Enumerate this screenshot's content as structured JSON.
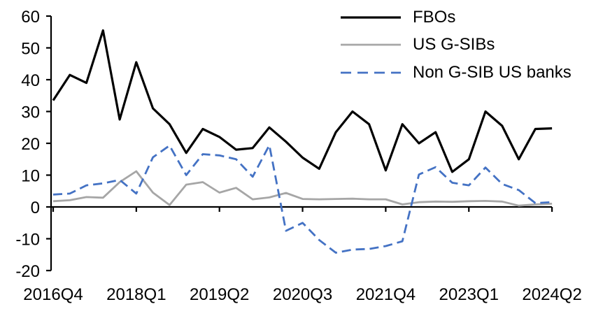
{
  "chart_data": {
    "type": "line",
    "title": "",
    "xlabel": "",
    "ylabel": "",
    "ylim": [
      -20,
      60
    ],
    "grid": false,
    "legend_position": "top-right",
    "categories": [
      "2016Q4",
      "2017Q1",
      "2017Q2",
      "2017Q3",
      "2017Q4",
      "2018Q1",
      "2018Q2",
      "2018Q3",
      "2018Q4",
      "2019Q1",
      "2019Q2",
      "2019Q3",
      "2019Q4",
      "2020Q1",
      "2020Q2",
      "2020Q3",
      "2020Q4",
      "2021Q1",
      "2021Q2",
      "2021Q3",
      "2021Q4",
      "2022Q1",
      "2022Q2",
      "2022Q3",
      "2022Q4",
      "2023Q1",
      "2023Q2",
      "2023Q3",
      "2023Q4",
      "2024Q1",
      "2024Q2"
    ],
    "x_tick_labels": [
      "2016Q4",
      "2018Q1",
      "2019Q2",
      "2020Q3",
      "2021Q4",
      "2023Q1",
      "2024Q2"
    ],
    "y_ticks": [
      60,
      50,
      40,
      30,
      20,
      10,
      0,
      -10,
      -20
    ],
    "series": [
      {
        "name": "FBOs",
        "color": "#000000",
        "dashed": false,
        "values": [
          33.5,
          41.5,
          39,
          55.5,
          27.5,
          45.5,
          31,
          26,
          17,
          24.5,
          22,
          18,
          18.5,
          25,
          20.5,
          15.5,
          12,
          23.5,
          30,
          26,
          11.5,
          26,
          20,
          23.5,
          11,
          15,
          30,
          25.5,
          15,
          24.5,
          24.7
        ]
      },
      {
        "name": "US G-SIBs",
        "color": "#A6A6A6",
        "dashed": false,
        "values": [
          1.8,
          2.1,
          3.1,
          2.9,
          7.8,
          11.2,
          4.5,
          0.6,
          7,
          7.8,
          4.5,
          6,
          2.4,
          3,
          4.4,
          2.5,
          2.4,
          2.5,
          2.6,
          2.4,
          2.4,
          0.8,
          1.5,
          1.7,
          1.6,
          1.8,
          1.9,
          1.7,
          0.4,
          0.8,
          1
        ]
      },
      {
        "name": "Non G-SIB US banks",
        "color": "#4472C4",
        "dashed": true,
        "values": [
          3.9,
          4.2,
          6.8,
          7.4,
          8.5,
          4.2,
          15.6,
          19.3,
          10,
          16.6,
          16.2,
          15,
          9.5,
          19.4,
          -7.5,
          -5,
          -10.4,
          -14.4,
          -13.4,
          -13.2,
          -12.3,
          -10.8,
          10.2,
          12.5,
          7.6,
          6.8,
          12.4,
          7.2,
          5.3,
          1.2,
          1.5
        ]
      }
    ]
  }
}
